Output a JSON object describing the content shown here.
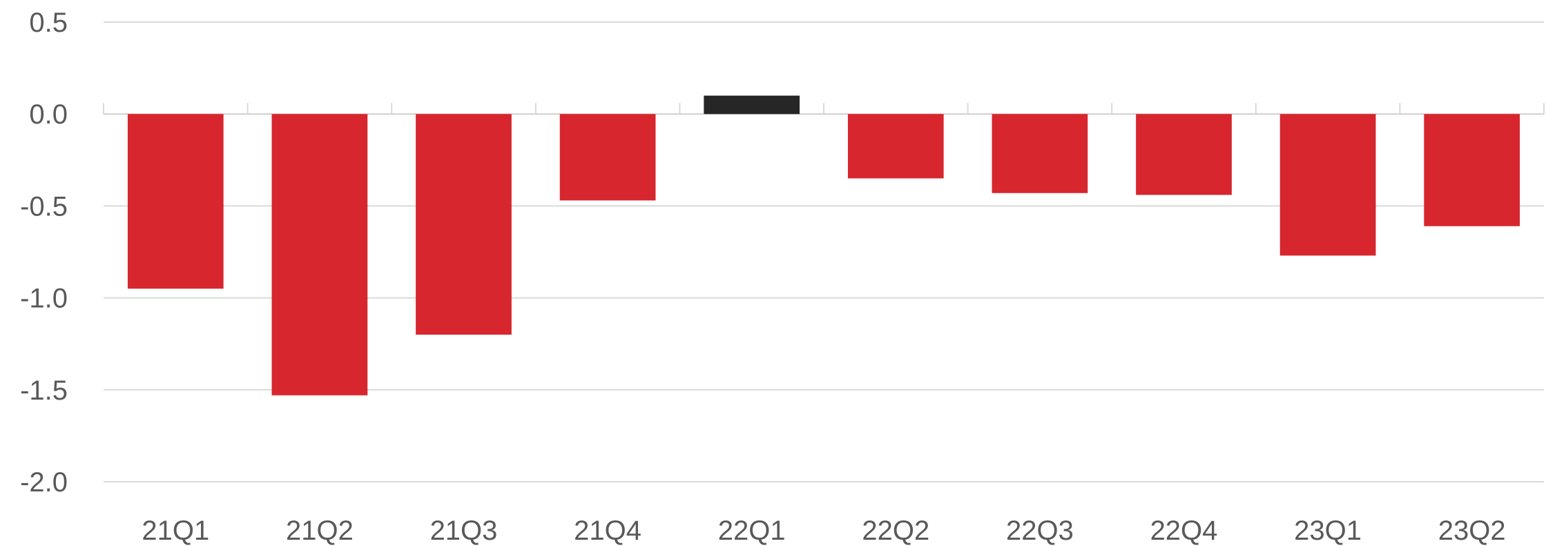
{
  "chart_data": {
    "type": "bar",
    "title": "",
    "xlabel": "",
    "ylabel": "",
    "categories": [
      "21Q1",
      "21Q2",
      "21Q3",
      "21Q4",
      "22Q1",
      "22Q2",
      "22Q3",
      "22Q4",
      "23Q1",
      "23Q2"
    ],
    "values": [
      -0.95,
      -1.53,
      -1.2,
      -0.47,
      0.1,
      -0.35,
      -0.43,
      -0.44,
      -0.77,
      -0.61
    ],
    "ylim": [
      -2.0,
      0.5
    ],
    "yticks": [
      0.5,
      0.0,
      -0.5,
      -1.0,
      -1.5,
      -2.0
    ],
    "ytick_labels": [
      "0.5",
      "0.0",
      "-0.5",
      "-1.0",
      "-1.5",
      "-2.0"
    ],
    "grid": true,
    "legend": "none",
    "colors": {
      "negative": "#d7262e",
      "positive": "#262626",
      "grid": "#d9d9d9",
      "text": "#595959"
    }
  }
}
